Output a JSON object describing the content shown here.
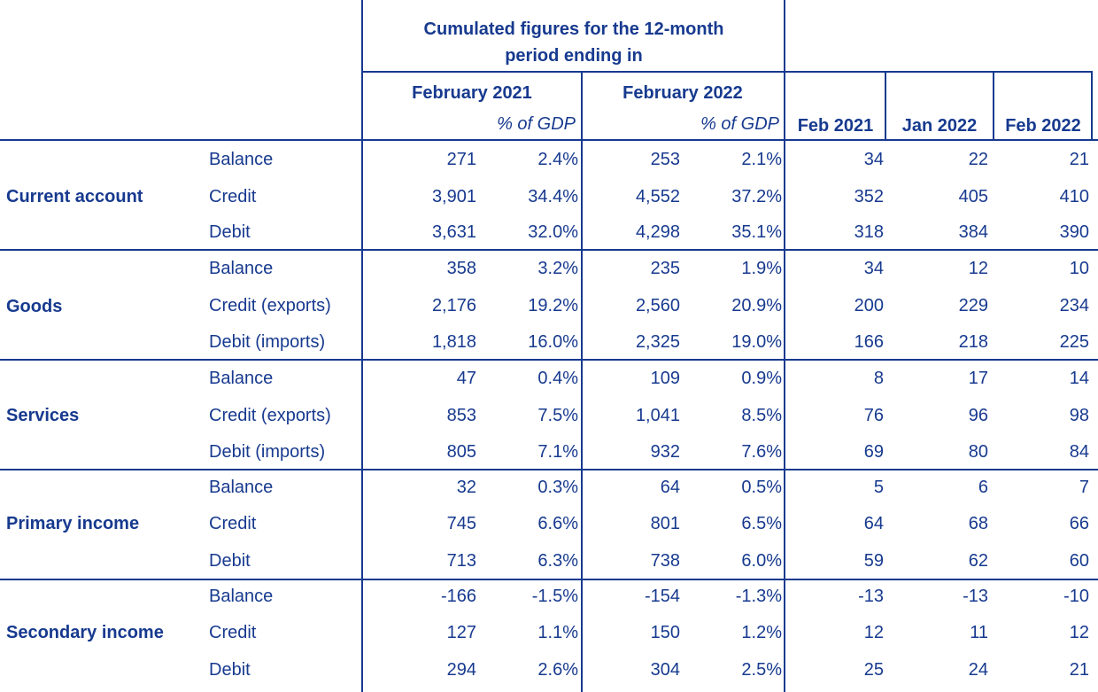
{
  "header": {
    "cumulated_line1": "Cumulated figures for the 12-month",
    "cumulated_line2": "period ending in",
    "period1": "February 2021",
    "period2": "February 2022",
    "pct_gdp": "% of GDP",
    "month1": "Feb 2021",
    "month2": "Jan 2022",
    "month3": "Feb 2022"
  },
  "groups": [
    {
      "name": "Current account",
      "rows": [
        {
          "label": "Balance",
          "v1": "271",
          "p1": "2.4%",
          "v2": "253",
          "p2": "2.1%",
          "m1": "34",
          "m2": "22",
          "m3": "21"
        },
        {
          "label": "Credit",
          "v1": "3,901",
          "p1": "34.4%",
          "v2": "4,552",
          "p2": "37.2%",
          "m1": "352",
          "m2": "405",
          "m3": "410"
        },
        {
          "label": "Debit",
          "v1": "3,631",
          "p1": "32.0%",
          "v2": "4,298",
          "p2": "35.1%",
          "m1": "318",
          "m2": "384",
          "m3": "390"
        }
      ]
    },
    {
      "name": "Goods",
      "rows": [
        {
          "label": "Balance",
          "v1": "358",
          "p1": "3.2%",
          "v2": "235",
          "p2": "1.9%",
          "m1": "34",
          "m2": "12",
          "m3": "10"
        },
        {
          "label": "Credit (exports)",
          "v1": "2,176",
          "p1": "19.2%",
          "v2": "2,560",
          "p2": "20.9%",
          "m1": "200",
          "m2": "229",
          "m3": "234"
        },
        {
          "label": "Debit (imports)",
          "v1": "1,818",
          "p1": "16.0%",
          "v2": "2,325",
          "p2": "19.0%",
          "m1": "166",
          "m2": "218",
          "m3": "225"
        }
      ]
    },
    {
      "name": "Services",
      "rows": [
        {
          "label": "Balance",
          "v1": "47",
          "p1": "0.4%",
          "v2": "109",
          "p2": "0.9%",
          "m1": "8",
          "m2": "17",
          "m3": "14"
        },
        {
          "label": "Credit (exports)",
          "v1": "853",
          "p1": "7.5%",
          "v2": "1,041",
          "p2": "8.5%",
          "m1": "76",
          "m2": "96",
          "m3": "98"
        },
        {
          "label": "Debit (imports)",
          "v1": "805",
          "p1": "7.1%",
          "v2": "932",
          "p2": "7.6%",
          "m1": "69",
          "m2": "80",
          "m3": "84"
        }
      ]
    },
    {
      "name": "Primary income",
      "rows": [
        {
          "label": "Balance",
          "v1": "32",
          "p1": "0.3%",
          "v2": "64",
          "p2": "0.5%",
          "m1": "5",
          "m2": "6",
          "m3": "7"
        },
        {
          "label": "Credit",
          "v1": "745",
          "p1": "6.6%",
          "v2": "801",
          "p2": "6.5%",
          "m1": "64",
          "m2": "68",
          "m3": "66"
        },
        {
          "label": "Debit",
          "v1": "713",
          "p1": "6.3%",
          "v2": "738",
          "p2": "6.0%",
          "m1": "59",
          "m2": "62",
          "m3": "60"
        }
      ]
    },
    {
      "name": "Secondary income",
      "rows": [
        {
          "label": "Balance",
          "v1": "-166",
          "p1": "-1.5%",
          "v2": "-154",
          "p2": "-1.3%",
          "m1": "-13",
          "m2": "-13",
          "m3": "-10"
        },
        {
          "label": "Credit",
          "v1": "127",
          "p1": "1.1%",
          "v2": "150",
          "p2": "1.2%",
          "m1": "12",
          "m2": "11",
          "m3": "12"
        },
        {
          "label": "Debit",
          "v1": "294",
          "p1": "2.6%",
          "v2": "304",
          "p2": "2.5%",
          "m1": "25",
          "m2": "24",
          "m3": "21"
        }
      ]
    }
  ]
}
